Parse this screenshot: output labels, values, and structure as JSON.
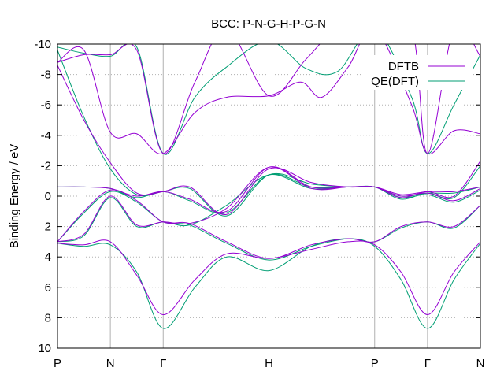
{
  "chart_data": {
    "type": "line",
    "title": "BCC: P-N-G-H-P-G-N",
    "ylabel": "Binding Energy / eV",
    "xlabel": "",
    "xlim": [
      0,
      8
    ],
    "ylim": [
      10,
      -10
    ],
    "y_inverted": true,
    "y_ticks": [
      -10,
      -8,
      -6,
      -4,
      -2,
      0,
      2,
      4,
      6,
      8,
      10
    ],
    "x_ticks": [
      {
        "x": 0,
        "label": "P"
      },
      {
        "x": 1,
        "label": "N"
      },
      {
        "x": 2,
        "label": "Γ"
      },
      {
        "x": 4,
        "label": "H"
      },
      {
        "x": 6,
        "label": "P"
      },
      {
        "x": 7,
        "label": "Γ"
      },
      {
        "x": 8,
        "label": "N"
      }
    ],
    "legend_position": "top-right",
    "series": [
      {
        "name": "DFTB",
        "color": "#9400d3",
        "bands": [
          [
            [
              0,
              3.1
            ],
            [
              0.5,
              3.2
            ],
            [
              1,
              3.0
            ],
            [
              1.5,
              5.2
            ],
            [
              2,
              7.8
            ],
            [
              2.6,
              5.5
            ],
            [
              3.2,
              3.8
            ],
            [
              4,
              4.1
            ],
            [
              4.8,
              3.5
            ],
            [
              5.5,
              3.0
            ],
            [
              6,
              3.2
            ],
            [
              6.5,
              5.0
            ],
            [
              7,
              7.8
            ],
            [
              7.5,
              5.0
            ],
            [
              8,
              3.0
            ]
          ],
          [
            [
              0,
              3.0
            ],
            [
              0.5,
              2.5
            ],
            [
              1,
              0.0
            ],
            [
              1.5,
              1.9
            ],
            [
              2,
              1.7
            ],
            [
              2.5,
              1.8
            ],
            [
              3.2,
              0.8
            ],
            [
              4,
              -1.9
            ],
            [
              4.8,
              -0.5
            ],
            [
              5.5,
              -0.6
            ],
            [
              6,
              -0.6
            ],
            [
              6.5,
              0.0
            ],
            [
              7,
              -0.2
            ],
            [
              7.5,
              0.3
            ],
            [
              8,
              -0.5
            ]
          ],
          [
            [
              0,
              3.0
            ],
            [
              0.5,
              1.0
            ],
            [
              1,
              -0.4
            ],
            [
              1.5,
              0.3
            ],
            [
              2,
              1.7
            ],
            [
              2.5,
              1.8
            ],
            [
              3.2,
              3.0
            ],
            [
              4,
              4.1
            ],
            [
              4.8,
              3.2
            ],
            [
              5.5,
              2.8
            ],
            [
              6,
              3.0
            ],
            [
              6.5,
              2.0
            ],
            [
              7,
              1.7
            ],
            [
              7.5,
              2.0
            ],
            [
              8,
              0.6
            ]
          ],
          [
            [
              0,
              -0.6
            ],
            [
              0.5,
              -0.6
            ],
            [
              1,
              -0.5
            ],
            [
              1.5,
              0.0
            ],
            [
              2,
              -0.3
            ],
            [
              2.5,
              0.2
            ],
            [
              3.2,
              1.0
            ],
            [
              4,
              -1.9
            ],
            [
              4.8,
              -0.6
            ],
            [
              5.5,
              -0.6
            ],
            [
              6,
              -0.6
            ],
            [
              6.5,
              -0.1
            ],
            [
              7,
              -0.3
            ],
            [
              7.5,
              -0.3
            ],
            [
              8,
              -0.6
            ]
          ],
          [
            [
              0,
              -8.6
            ],
            [
              0.5,
              -5.0
            ],
            [
              1,
              -2.2
            ],
            [
              1.5,
              -0.2
            ],
            [
              2,
              -0.3
            ],
            [
              2.5,
              -0.6
            ],
            [
              3.2,
              1.2
            ],
            [
              4,
              -1.8
            ],
            [
              4.8,
              -0.9
            ],
            [
              5.5,
              -0.6
            ],
            [
              6,
              -0.6
            ],
            [
              6.5,
              0.1
            ],
            [
              7,
              -0.3
            ],
            [
              7.5,
              0.0
            ],
            [
              8,
              -2.3
            ]
          ],
          [
            [
              0,
              -8.8
            ],
            [
              0.5,
              -9.6
            ],
            [
              1,
              -4.2
            ],
            [
              1.5,
              -4.1
            ],
            [
              2,
              -2.8
            ],
            [
              2.6,
              -5.5
            ],
            [
              3.2,
              -6.5
            ],
            [
              4,
              -6.6
            ],
            [
              4.6,
              -7.5
            ],
            [
              5,
              -6.5
            ],
            [
              5.5,
              -8.5
            ],
            [
              6,
              -11
            ],
            [
              6.7,
              -6
            ],
            [
              7,
              -2.8
            ],
            [
              7.5,
              -4.3
            ],
            [
              8,
              -4.1
            ]
          ],
          [
            [
              0,
              -8.8
            ],
            [
              0.5,
              -9.3
            ],
            [
              1,
              -9.3
            ],
            [
              1.5,
              -9.6
            ],
            [
              2,
              -2.8
            ],
            [
              2.6,
              -7.5
            ],
            [
              3.2,
              -11
            ],
            [
              4,
              -6.6
            ],
            [
              4.7,
              -9.0
            ],
            [
              5.3,
              -11
            ],
            [
              6,
              -11
            ],
            [
              6.7,
              -11
            ],
            [
              7,
              -2.8
            ],
            [
              7.5,
              -11
            ],
            [
              8,
              -9.2
            ]
          ]
        ]
      },
      {
        "name": "QE(DFT)",
        "color": "#009e73",
        "bands": [
          [
            [
              0,
              3.1
            ],
            [
              0.5,
              3.3
            ],
            [
              1,
              3.2
            ],
            [
              1.5,
              5.0
            ],
            [
              2,
              8.7
            ],
            [
              2.6,
              6.0
            ],
            [
              3.2,
              4.0
            ],
            [
              4,
              4.9
            ],
            [
              4.8,
              3.3
            ],
            [
              5.5,
              2.8
            ],
            [
              6,
              3.3
            ],
            [
              6.5,
              5.5
            ],
            [
              7,
              8.7
            ],
            [
              7.5,
              5.5
            ],
            [
              8,
              3.1
            ]
          ],
          [
            [
              0,
              3.0
            ],
            [
              0.5,
              2.6
            ],
            [
              1,
              0.1
            ],
            [
              1.5,
              2.0
            ],
            [
              2,
              1.7
            ],
            [
              2.5,
              1.9
            ],
            [
              3.2,
              0.6
            ],
            [
              4,
              -1.4
            ],
            [
              4.8,
              -0.5
            ],
            [
              5.5,
              -0.6
            ],
            [
              6,
              -0.6
            ],
            [
              6.5,
              0.1
            ],
            [
              7,
              -0.1
            ],
            [
              7.5,
              0.4
            ],
            [
              8,
              -0.4
            ]
          ],
          [
            [
              0,
              3.0
            ],
            [
              0.5,
              1.1
            ],
            [
              1,
              -0.3
            ],
            [
              1.5,
              0.4
            ],
            [
              2,
              1.7
            ],
            [
              2.5,
              1.9
            ],
            [
              3.2,
              3.1
            ],
            [
              4,
              4.2
            ],
            [
              4.8,
              3.3
            ],
            [
              5.5,
              2.8
            ],
            [
              6,
              3.0
            ],
            [
              6.5,
              2.1
            ],
            [
              7,
              1.7
            ],
            [
              7.5,
              2.1
            ],
            [
              8,
              0.6
            ]
          ],
          [
            [
              0,
              -0.6
            ],
            [
              0.5,
              -0.6
            ],
            [
              1,
              -0.5
            ],
            [
              1.5,
              0.1
            ],
            [
              2,
              -0.3
            ],
            [
              2.5,
              0.3
            ],
            [
              3.2,
              1.1
            ],
            [
              4,
              -1.4
            ],
            [
              4.8,
              -0.6
            ],
            [
              5.5,
              -0.6
            ],
            [
              6,
              -0.6
            ],
            [
              6.5,
              0.0
            ],
            [
              7,
              -0.2
            ],
            [
              7.5,
              -0.2
            ],
            [
              8,
              -0.6
            ]
          ],
          [
            [
              0,
              -9.6
            ],
            [
              0.5,
              -5.2
            ],
            [
              1,
              -1.8
            ],
            [
              1.5,
              -0.1
            ],
            [
              2,
              -0.3
            ],
            [
              2.5,
              -0.5
            ],
            [
              3.2,
              1.3
            ],
            [
              4,
              -1.4
            ],
            [
              4.8,
              -0.8
            ],
            [
              5.5,
              -0.6
            ],
            [
              6,
              -0.6
            ],
            [
              6.5,
              0.2
            ],
            [
              7,
              -0.2
            ],
            [
              7.5,
              0.1
            ],
            [
              8,
              -2.0
            ]
          ],
          [
            [
              0,
              -9.8
            ],
            [
              0.5,
              -9.4
            ],
            [
              1,
              -9.2
            ],
            [
              1.5,
              -9.8
            ],
            [
              2,
              -2.8
            ],
            [
              2.6,
              -6.5
            ],
            [
              3.2,
              -8.5
            ],
            [
              4,
              -10.2
            ],
            [
              4.7,
              -8.4
            ],
            [
              5.3,
              -8.2
            ],
            [
              6,
              -11
            ],
            [
              6.7,
              -6.5
            ],
            [
              7,
              -2.8
            ],
            [
              7.5,
              -6.0
            ],
            [
              8,
              -9.3
            ]
          ]
        ]
      }
    ]
  }
}
